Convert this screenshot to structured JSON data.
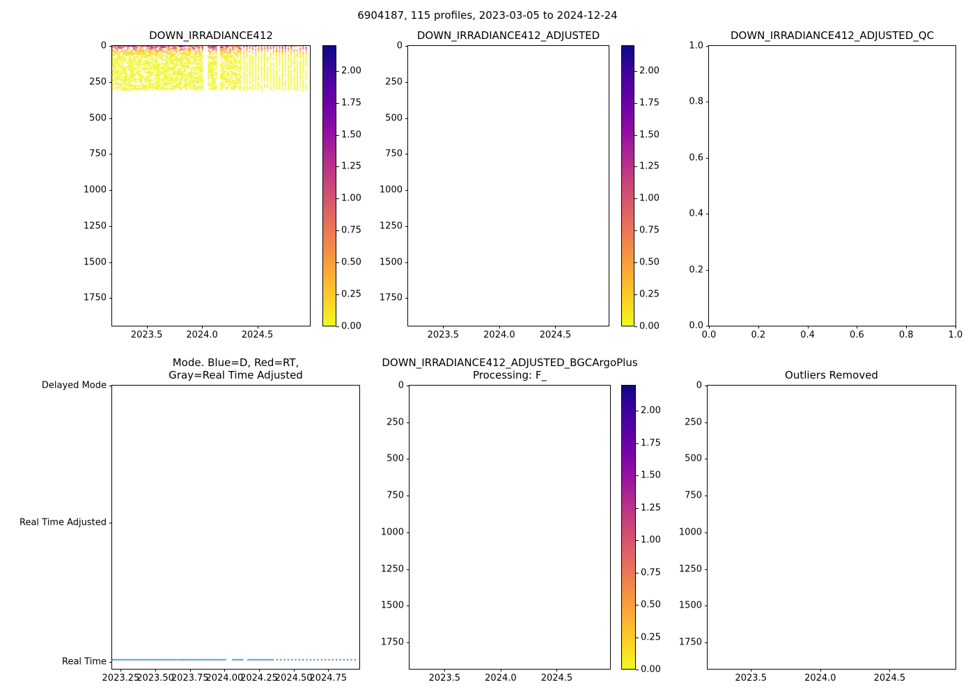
{
  "figure": {
    "title": "6904187, 115 profiles, 2023-03-05 to 2024-12-24",
    "background": "#ffffff",
    "spine_color": "#000000"
  },
  "colormap": {
    "name": "plasma-reversed-display",
    "anchors": [
      [
        0.0,
        "#0d0887"
      ],
      [
        0.1,
        "#41049d"
      ],
      [
        0.2,
        "#6a00a8"
      ],
      [
        0.3,
        "#8f0da4"
      ],
      [
        0.4,
        "#b12a90"
      ],
      [
        0.5,
        "#cc4778"
      ],
      [
        0.6,
        "#e16462"
      ],
      [
        0.7,
        "#f2844b"
      ],
      [
        0.8,
        "#fca636"
      ],
      [
        0.9,
        "#fcce25"
      ],
      [
        1.0,
        "#f0f921"
      ]
    ],
    "vmin": 0.0,
    "vmax": 2.2
  },
  "profiles": {
    "count": 115,
    "start": 2023.19,
    "end": 2024.97,
    "dense_end": 2024.36,
    "dense_step": 0.0139,
    "sparse_step": 0.027,
    "gaps": [
      [
        2024.02,
        2024.055
      ],
      [
        2024.145,
        2024.175
      ]
    ],
    "seed": 1234
  },
  "chart_data": [
    {
      "id": "ax0",
      "type": "scatter",
      "title": "DOWN_IRRADIANCE412",
      "xlim": [
        2023.1875,
        2024.975
      ],
      "ylim": [
        0,
        1942
      ],
      "xticks": {
        "values": [
          2023.5,
          2024.0,
          2024.5
        ],
        "labels": [
          "2023.5",
          "2024.0",
          "2024.5"
        ]
      },
      "yticks": {
        "values": [
          0,
          250,
          500,
          750,
          1000,
          1250,
          1500,
          1750
        ],
        "labels": [
          "0",
          "250",
          "500",
          "750",
          "1000",
          "1250",
          "1500",
          "1750"
        ]
      },
      "scatter": {
        "seed": 42,
        "max_depth": 300,
        "decay_depth": 22,
        "surface_band_depth": 5,
        "fill_dense": 0.62,
        "fill_sparse": 0.88,
        "depth_step_dense": [
          6,
          10
        ],
        "depth_step_sparse": [
          9,
          14
        ],
        "marker_px": 2
      },
      "colorbar": {
        "vmin": 0.0,
        "vmax": 2.2,
        "ticks": [
          2.0,
          1.75,
          1.5,
          1.25,
          1.0,
          0.75,
          0.5,
          0.25,
          0.0
        ],
        "labels": [
          "2.00",
          "1.75",
          "1.50",
          "1.25",
          "1.00",
          "0.75",
          "0.50",
          "0.25",
          "0.00"
        ]
      }
    },
    {
      "id": "ax1",
      "type": "scatter",
      "title": "DOWN_IRRADIANCE412_ADJUSTED",
      "empty": true,
      "xlim": [
        2023.1875,
        2024.975
      ],
      "ylim": [
        0,
        1942
      ],
      "xticks": {
        "values": [
          2023.5,
          2024.0,
          2024.5
        ],
        "labels": [
          "2023.5",
          "2024.0",
          "2024.5"
        ]
      },
      "yticks": {
        "values": [
          0,
          250,
          500,
          750,
          1000,
          1250,
          1500,
          1750
        ],
        "labels": [
          "0",
          "250",
          "500",
          "750",
          "1000",
          "1250",
          "1500",
          "1750"
        ]
      },
      "colorbar": {
        "vmin": 0.0,
        "vmax": 2.2,
        "ticks": [
          2.0,
          1.75,
          1.5,
          1.25,
          1.0,
          0.75,
          0.5,
          0.25,
          0.0
        ],
        "labels": [
          "2.00",
          "1.75",
          "1.50",
          "1.25",
          "1.00",
          "0.75",
          "0.50",
          "0.25",
          "0.00"
        ]
      }
    },
    {
      "id": "ax2",
      "type": "scatter",
      "title": "DOWN_IRRADIANCE412_ADJUSTED_QC",
      "empty": true,
      "xlim": [
        0.0,
        1.0
      ],
      "ylim": [
        1.0,
        0.0
      ],
      "xticks": {
        "values": [
          0.0,
          0.2,
          0.4,
          0.6,
          0.8,
          1.0
        ],
        "labels": [
          "0.0",
          "0.2",
          "0.4",
          "0.6",
          "0.8",
          "1.0"
        ]
      },
      "yticks": {
        "values": [
          1.0,
          0.8,
          0.6,
          0.4,
          0.2,
          0.0
        ],
        "labels": [
          "1.0",
          "0.8",
          "0.6",
          "0.4",
          "0.2",
          "0.0"
        ]
      }
    },
    {
      "id": "ax3",
      "type": "scatter",
      "title": "Mode. Blue=D, Red=RT,\nGray=Real Time Adjusted",
      "xlim": [
        2023.1875,
        2024.975
      ],
      "categories": {
        "labels": [
          "Delayed Mode",
          "Real Time Adjusted",
          "Real Time"
        ],
        "fractions_from_top": [
          0.0,
          0.485,
          0.975
        ]
      },
      "xticks": {
        "values": [
          2023.25,
          2023.5,
          2023.75,
          2024.0,
          2024.25,
          2024.5,
          2024.75
        ],
        "labels": [
          "2023.25",
          "2023.50",
          "2023.75",
          "2024.00",
          "2024.25",
          "2024.50",
          "2024.75"
        ]
      },
      "series": {
        "name": "mode-of-each-profile",
        "value_for_all_profiles": "Real Time",
        "marker_color": "#1f77b4",
        "marker_px": 2
      }
    },
    {
      "id": "ax4",
      "type": "scatter",
      "title": "DOWN_IRRADIANCE412_ADJUSTED_BGCArgoPlus\nProcessing: F_",
      "empty": true,
      "xlim": [
        2023.1875,
        2024.975
      ],
      "ylim": [
        0,
        1929
      ],
      "xticks": {
        "values": [
          2023.5,
          2024.0,
          2024.5
        ],
        "labels": [
          "2023.5",
          "2024.0",
          "2024.5"
        ]
      },
      "yticks": {
        "values": [
          0,
          250,
          500,
          750,
          1000,
          1250,
          1500,
          1750
        ],
        "labels": [
          "0",
          "250",
          "500",
          "750",
          "1000",
          "1250",
          "1500",
          "1750"
        ]
      },
      "colorbar": {
        "vmin": 0.0,
        "vmax": 2.2,
        "ticks": [
          2.0,
          1.75,
          1.5,
          1.25,
          1.0,
          0.75,
          0.5,
          0.25,
          0.0
        ],
        "labels": [
          "2.00",
          "1.75",
          "1.50",
          "1.25",
          "1.00",
          "0.75",
          "0.50",
          "0.25",
          "0.00"
        ]
      }
    },
    {
      "id": "ax5",
      "type": "scatter",
      "title": "Outliers Removed",
      "empty": true,
      "xlim": [
        2023.1875,
        2024.975
      ],
      "ylim": [
        0,
        1929
      ],
      "xticks": {
        "values": [
          2023.5,
          2024.0,
          2024.5
        ],
        "labels": [
          "2023.5",
          "2024.0",
          "2024.5"
        ]
      },
      "yticks": {
        "values": [
          0,
          250,
          500,
          750,
          1000,
          1250,
          1500,
          1750
        ],
        "labels": [
          "0",
          "250",
          "500",
          "750",
          "1000",
          "1250",
          "1500",
          "1750"
        ]
      }
    }
  ]
}
